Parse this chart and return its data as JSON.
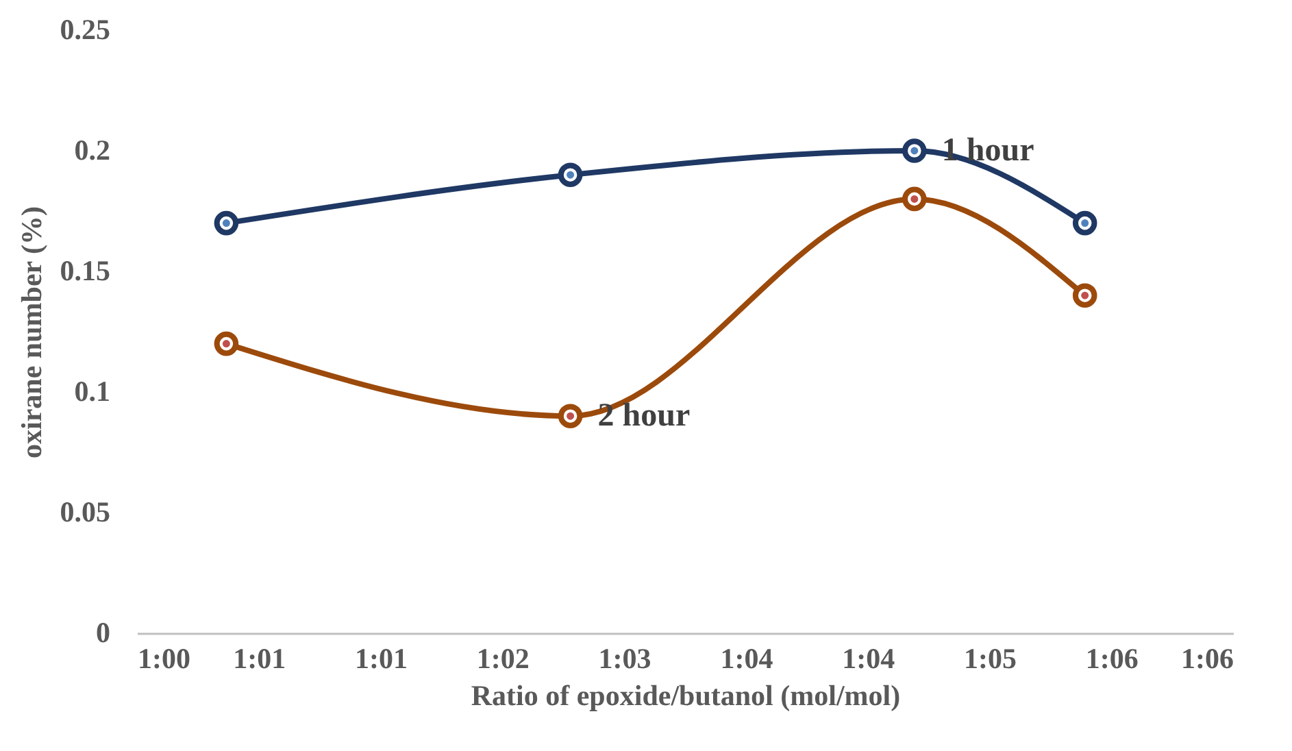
{
  "chart_data": {
    "type": "line",
    "xlabel": "Ratio of epoxide/butanol (mol/mol)",
    "ylabel": "oxirane number (%)",
    "x": [
      1.0088,
      1.0427,
      1.0766,
      1.0934
    ],
    "series": [
      {
        "name": "1 hour",
        "color": "#1f3864",
        "values": [
          0.17,
          0.19,
          0.2,
          0.17
        ]
      },
      {
        "name": "2 hour",
        "color": "#9c4a0b",
        "values": [
          0.12,
          0.09,
          0.18,
          0.14
        ]
      }
    ],
    "xlim": [
      1,
      1.108
    ],
    "xticks": [
      {
        "value": 1,
        "label": "1:00"
      },
      {
        "value": 1.012,
        "label": "1:01"
      },
      {
        "value": 1.024,
        "label": "1:01"
      },
      {
        "value": 1.036,
        "label": "1:02"
      },
      {
        "value": 1.048,
        "label": "1:03"
      },
      {
        "value": 1.06,
        "label": "1:04"
      },
      {
        "value": 1.072,
        "label": "1:04"
      },
      {
        "value": 1.084,
        "label": "1:05"
      },
      {
        "value": 1.096,
        "label": "1:06"
      },
      {
        "value": 1.108,
        "label": "1:06"
      }
    ],
    "ylim": [
      0,
      0.25
    ],
    "yticks": [
      0,
      0.05,
      0.1,
      0.15,
      0.2,
      0.25
    ],
    "grid": false,
    "legend": false,
    "marker": "circle",
    "line_style": "solid"
  }
}
